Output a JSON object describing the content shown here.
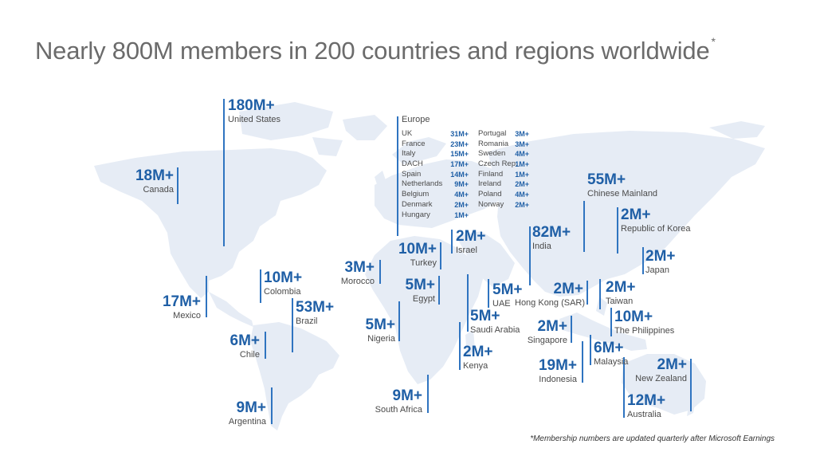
{
  "title": "Nearly 800M members in 200 countries and regions worldwide",
  "title_mark": "*",
  "footnote": "*Membership numbers are updated quarterly after Microsoft Earnings",
  "colors": {
    "accent": "#1f5fa6",
    "map": "#e6ecf5",
    "bar": "#2f74c0",
    "title": "#6b6b6b"
  },
  "europe": {
    "header": "Europe",
    "col1": [
      {
        "country": "UK",
        "members": "31M+"
      },
      {
        "country": "France",
        "members": "23M+"
      },
      {
        "country": "Italy",
        "members": "15M+"
      },
      {
        "country": "DACH",
        "members": "17M+"
      },
      {
        "country": "Spain",
        "members": "14M+"
      },
      {
        "country": "Netherlands",
        "members": "9M+"
      },
      {
        "country": "Belgium",
        "members": "4M+"
      },
      {
        "country": "Denmark",
        "members": "2M+"
      },
      {
        "country": "Hungary",
        "members": "1M+"
      }
    ],
    "col2": [
      {
        "country": "Portugal",
        "members": "3M+"
      },
      {
        "country": "Romania",
        "members": "3M+"
      },
      {
        "country": "Sweden",
        "members": "4M+"
      },
      {
        "country": "Czech Rep.",
        "members": "1M+"
      },
      {
        "country": "Finland",
        "members": "1M+"
      },
      {
        "country": "Ireland",
        "members": "2M+"
      },
      {
        "country": "Poland",
        "members": "4M+"
      },
      {
        "country": "Norway",
        "members": "2M+"
      }
    ]
  },
  "stats": {
    "us": {
      "value": "180M+",
      "name": "United States"
    },
    "canada": {
      "value": "18M+",
      "name": "Canada"
    },
    "mexico": {
      "value": "17M+",
      "name": "Mexico"
    },
    "colombia": {
      "value": "10M+",
      "name": "Colombia"
    },
    "brazil": {
      "value": "53M+",
      "name": "Brazil"
    },
    "chile": {
      "value": "6M+",
      "name": "Chile"
    },
    "argentina": {
      "value": "9M+",
      "name": "Argentina"
    },
    "morocco": {
      "value": "3M+",
      "name": "Morocco"
    },
    "turkey": {
      "value": "10M+",
      "name": "Turkey"
    },
    "israel": {
      "value": "2M+",
      "name": "Israel"
    },
    "egypt": {
      "value": "5M+",
      "name": "Egypt"
    },
    "nigeria": {
      "value": "5M+",
      "name": "Nigeria"
    },
    "uae": {
      "value": "5M+",
      "name": "UAE"
    },
    "saudi": {
      "value": "5M+",
      "name": "Saudi Arabia"
    },
    "kenya": {
      "value": "2M+",
      "name": "Kenya"
    },
    "southafrica": {
      "value": "9M+",
      "name": "South Africa"
    },
    "india": {
      "value": "82M+",
      "name": "India"
    },
    "china": {
      "value": "55M+",
      "name": "Chinese Mainland"
    },
    "korea": {
      "value": "2M+",
      "name": "Republic of Korea"
    },
    "japan": {
      "value": "2M+",
      "name": "Japan"
    },
    "hongkong": {
      "value": "2M+",
      "name": "Hong Kong (SAR)"
    },
    "taiwan": {
      "value": "2M+",
      "name": "Taiwan"
    },
    "singapore": {
      "value": "2M+",
      "name": "Singapore"
    },
    "philippines": {
      "value": "10M+",
      "name": "The Philippines"
    },
    "malaysia": {
      "value": "6M+",
      "name": "Malaysia"
    },
    "indonesia": {
      "value": "19M+",
      "name": "Indonesia"
    },
    "newzealand": {
      "value": "2M+",
      "name": "New Zealand"
    },
    "australia": {
      "value": "12M+",
      "name": "Australia"
    }
  }
}
